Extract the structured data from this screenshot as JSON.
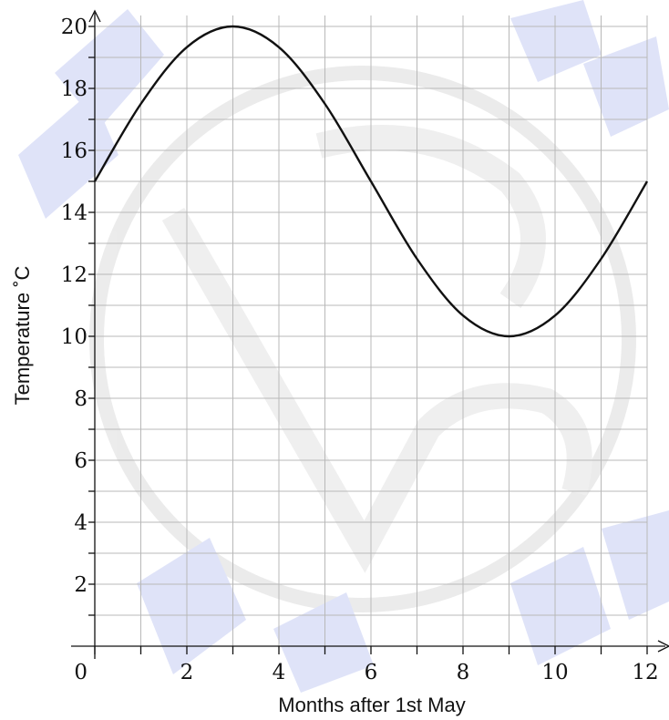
{
  "chart_data": {
    "type": "line",
    "title": "",
    "xlabel": "Months after 1st May",
    "ylabel": "Temperature  ˚C",
    "xlim": [
      0,
      12
    ],
    "ylim": [
      0,
      20
    ],
    "grid": true,
    "x_ticks": [
      0,
      2,
      4,
      6,
      8,
      10,
      12
    ],
    "y_ticks": [
      2,
      4,
      6,
      8,
      10,
      12,
      14,
      16,
      18,
      20
    ],
    "x_tick_labels": [
      "0",
      "2",
      "4",
      "6",
      "8",
      "10",
      "12"
    ],
    "y_tick_labels": [
      "2",
      "4",
      "6",
      "8",
      "10",
      "12",
      "14",
      "16",
      "18",
      "20"
    ],
    "series": [
      {
        "x": [
          0,
          1,
          2,
          3,
          4,
          5,
          6,
          7,
          8,
          9,
          10,
          11,
          12
        ],
        "y": [
          15,
          17.5,
          19.33,
          20,
          19.33,
          17.5,
          15,
          12.5,
          10.67,
          10,
          10.67,
          12.5,
          15
        ]
      }
    ],
    "colors": {
      "line": "#111111",
      "grid": "#b8b8b8",
      "watermark": "#c8ccf0",
      "watermark_ring": "#d9d9d9"
    }
  }
}
